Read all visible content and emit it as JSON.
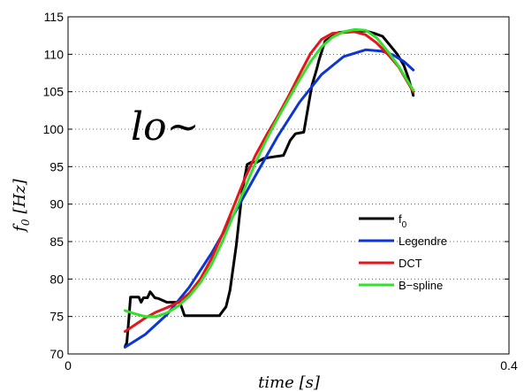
{
  "chart_data": {
    "type": "line",
    "xlabel_main": "time",
    "xlabel_unit": "[s]",
    "ylabel_main": "f",
    "ylabel_sub": "0",
    "ylabel_unit": "[Hz]",
    "annotation": "lo~",
    "xlim": [
      0,
      0.4
    ],
    "ylim": [
      70,
      115
    ],
    "xticks": [
      0,
      0.4
    ],
    "xtick_labels": [
      "0",
      "0.4"
    ],
    "yticks": [
      70,
      75,
      80,
      85,
      90,
      95,
      100,
      105,
      110,
      115
    ],
    "ytick_labels": [
      "70",
      "75",
      "80",
      "85",
      "90",
      "95",
      "100",
      "105",
      "110",
      "115"
    ],
    "grid": true,
    "legend_position": "right",
    "legend": [
      {
        "label": "f",
        "sub": "0"
      },
      {
        "label": "Legendre"
      },
      {
        "label": "DCT"
      },
      {
        "label": "B−spline"
      }
    ],
    "series": [
      {
        "name": "f0",
        "color": "#000000",
        "x": [
          0.0517,
          0.0533,
          0.0551,
          0.0567,
          0.0606,
          0.0642,
          0.0663,
          0.0684,
          0.0721,
          0.0745,
          0.0787,
          0.0818,
          0.0866,
          0.0897,
          0.0933,
          0.0969,
          0.1015,
          0.1057,
          0.1099,
          0.1112,
          0.113,
          0.1155,
          0.1172,
          0.1253,
          0.1372,
          0.1433,
          0.1469,
          0.1526,
          0.1578,
          0.1602,
          0.1626,
          0.1663,
          0.1714,
          0.1776,
          0.186,
          0.1954,
          0.2015,
          0.2063,
          0.2139,
          0.2184,
          0.2212,
          0.2257,
          0.2278,
          0.2302,
          0.2333,
          0.2454,
          0.2581,
          0.2702,
          0.2775,
          0.2853,
          0.2932,
          0.2987,
          0.3047,
          0.3084,
          0.312,
          0.3132
        ],
        "y": [
          71.0,
          71.5,
          74.5,
          77.6,
          77.6,
          77.6,
          76.9,
          77.5,
          77.5,
          78.3,
          77.5,
          77.4,
          77.1,
          76.9,
          76.9,
          76.9,
          76.9,
          75.1,
          75.1,
          75.1,
          75.1,
          75.1,
          75.1,
          75.1,
          75.1,
          76.3,
          78.5,
          84.5,
          91.5,
          93.5,
          95.3,
          95.6,
          95.6,
          96.1,
          96.3,
          96.5,
          98.5,
          99.4,
          99.6,
          103.5,
          105.8,
          108.1,
          109.3,
          110.4,
          111.8,
          112.9,
          113.1,
          113.1,
          112.8,
          112.4,
          111.0,
          110.0,
          108.5,
          107.0,
          105.2,
          104.5
        ]
      },
      {
        "name": "Legendre",
        "color": "#0b35d6",
        "x": [
          0.0517,
          0.07,
          0.09,
          0.11,
          0.13,
          0.15,
          0.17,
          0.19,
          0.21,
          0.23,
          0.25,
          0.27,
          0.285,
          0.295,
          0.305,
          0.3132
        ],
        "y": [
          70.9,
          72.6,
          75.3,
          78.9,
          83.4,
          88.5,
          93.8,
          99.0,
          103.6,
          107.3,
          109.7,
          110.6,
          110.4,
          109.9,
          109.0,
          107.9
        ]
      },
      {
        "name": "DCT",
        "color": "#e8141b",
        "x": [
          0.0517,
          0.06,
          0.07,
          0.08,
          0.09,
          0.1,
          0.11,
          0.12,
          0.13,
          0.14,
          0.15,
          0.16,
          0.17,
          0.18,
          0.19,
          0.2,
          0.21,
          0.22,
          0.23,
          0.24,
          0.25,
          0.26,
          0.27,
          0.28,
          0.29,
          0.3,
          0.3132
        ],
        "y": [
          73.0,
          73.8,
          74.8,
          75.6,
          76.2,
          76.9,
          78.1,
          80.0,
          82.7,
          86.0,
          89.6,
          93.3,
          96.5,
          99.2,
          101.7,
          104.4,
          107.3,
          110.1,
          112.0,
          112.8,
          112.9,
          113.0,
          112.6,
          111.5,
          110.0,
          108.3,
          105.0
        ]
      },
      {
        "name": "B−spline",
        "color": "#33e02a",
        "x": [
          0.0517,
          0.06,
          0.07,
          0.08,
          0.09,
          0.1,
          0.11,
          0.12,
          0.13,
          0.14,
          0.15,
          0.16,
          0.17,
          0.18,
          0.19,
          0.2,
          0.21,
          0.22,
          0.23,
          0.24,
          0.25,
          0.26,
          0.27,
          0.28,
          0.29,
          0.3,
          0.3132
        ],
        "y": [
          75.8,
          75.4,
          75.0,
          75.0,
          75.5,
          76.4,
          77.7,
          79.5,
          81.9,
          85.0,
          88.5,
          92.0,
          95.5,
          98.6,
          101.4,
          104.0,
          106.6,
          109.0,
          111.0,
          112.3,
          113.0,
          113.3,
          113.2,
          112.2,
          110.4,
          108.4,
          105.2
        ]
      }
    ]
  }
}
